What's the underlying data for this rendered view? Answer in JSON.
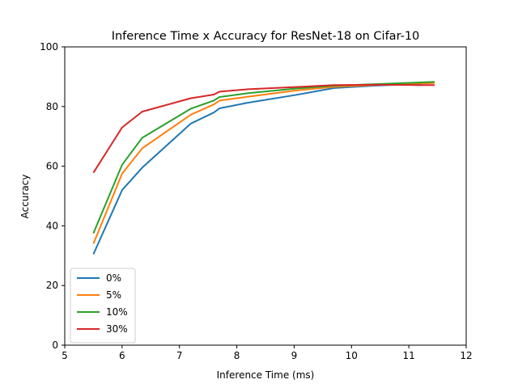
{
  "chart_data": {
    "type": "line",
    "title": "Inference Time x Accuracy for ResNet-18 on Cifar-10",
    "xlabel": "Inference Time (ms)",
    "ylabel": "Accuracy",
    "xlim": [
      5,
      12
    ],
    "ylim": [
      0,
      100
    ],
    "xticks": [
      5,
      6,
      7,
      8,
      9,
      10,
      11,
      12
    ],
    "yticks": [
      0,
      20,
      40,
      60,
      80,
      100
    ],
    "grid": false,
    "legend_position": "lower-left",
    "series": [
      {
        "name": "0%",
        "color": "#1f77b4",
        "points": [
          [
            5.5,
            30.5
          ],
          [
            6.0,
            52.0
          ],
          [
            6.35,
            59.5
          ],
          [
            7.2,
            74.3
          ],
          [
            7.6,
            78.0
          ],
          [
            7.7,
            79.4
          ],
          [
            8.2,
            81.3
          ],
          [
            9.0,
            83.8
          ],
          [
            9.7,
            86.2
          ],
          [
            10.4,
            87.0
          ],
          [
            11.1,
            87.6
          ],
          [
            11.45,
            88.0
          ]
        ]
      },
      {
        "name": "5%",
        "color": "#ff7f0e",
        "points": [
          [
            5.5,
            34.0
          ],
          [
            6.0,
            57.5
          ],
          [
            6.35,
            66.0
          ],
          [
            7.2,
            77.3
          ],
          [
            7.6,
            80.7
          ],
          [
            7.7,
            82.0
          ],
          [
            8.2,
            83.3
          ],
          [
            9.0,
            85.3
          ],
          [
            9.7,
            86.6
          ],
          [
            10.4,
            87.2
          ],
          [
            11.1,
            87.7
          ],
          [
            11.45,
            87.9
          ]
        ]
      },
      {
        "name": "10%",
        "color": "#2ca02c",
        "points": [
          [
            5.5,
            37.5
          ],
          [
            6.0,
            60.5
          ],
          [
            6.35,
            69.5
          ],
          [
            7.2,
            79.3
          ],
          [
            7.6,
            82.0
          ],
          [
            7.7,
            83.2
          ],
          [
            8.2,
            84.5
          ],
          [
            9.0,
            86.0
          ],
          [
            9.7,
            87.0
          ],
          [
            10.4,
            87.5
          ],
          [
            11.1,
            88.0
          ],
          [
            11.45,
            88.3
          ]
        ]
      },
      {
        "name": "30%",
        "color": "#d62728",
        "points": [
          [
            5.5,
            57.8
          ],
          [
            6.0,
            73.0
          ],
          [
            6.35,
            78.3
          ],
          [
            7.2,
            82.8
          ],
          [
            7.6,
            84.0
          ],
          [
            7.7,
            85.0
          ],
          [
            8.2,
            85.8
          ],
          [
            9.0,
            86.5
          ],
          [
            9.7,
            87.2
          ],
          [
            10.4,
            87.3
          ],
          [
            11.1,
            87.2
          ],
          [
            11.45,
            87.2
          ]
        ]
      }
    ]
  }
}
